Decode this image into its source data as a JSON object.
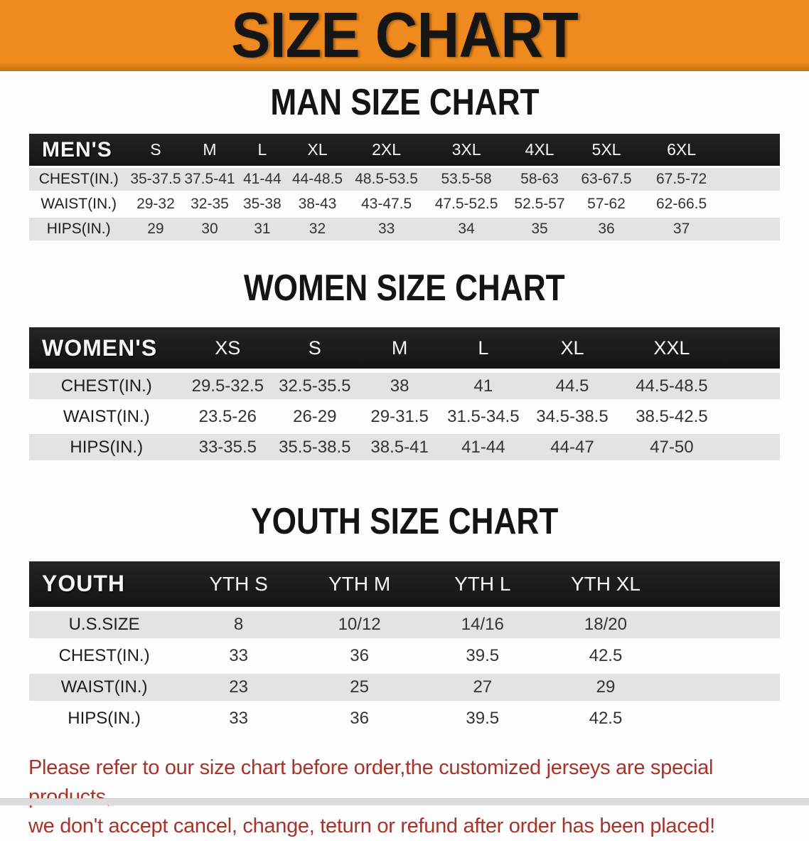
{
  "banner": {
    "title": "SIZE CHART"
  },
  "sections": [
    {
      "heading": "MAN SIZE CHART",
      "table": {
        "header_label": "MEN'S",
        "columns": [
          "S",
          "M",
          "L",
          "XL",
          "2XL",
          "3XL",
          "4XL",
          "5XL",
          "6XL"
        ],
        "rows": [
          {
            "label": "CHEST(IN.)",
            "values": [
              "35-37.5",
              "37.5-41",
              "41-44",
              "44-48.5",
              "48.5-53.5",
              "53.5-58",
              "58-63",
              "63-67.5",
              "67.5-72"
            ]
          },
          {
            "label": "WAIST(IN.)",
            "values": [
              "29-32",
              "32-35",
              "35-38",
              "38-43",
              "43-47.5",
              "47.5-52.5",
              "52.5-57",
              "57-62",
              "62-66.5"
            ]
          },
          {
            "label": "HIPS(IN.)",
            "values": [
              "29",
              "30",
              "31",
              "32",
              "33",
              "34",
              "35",
              "36",
              "37"
            ]
          }
        ]
      }
    },
    {
      "heading": "WOMEN SIZE CHART",
      "table": {
        "header_label": "WOMEN'S",
        "columns": [
          "XS",
          "S",
          "M",
          "L",
          "XL",
          "XXL"
        ],
        "rows": [
          {
            "label": "CHEST(IN.)",
            "values": [
              "29.5-32.5",
              "32.5-35.5",
              "38",
              "41",
              "44.5",
              "44.5-48.5"
            ]
          },
          {
            "label": "WAIST(IN.)",
            "values": [
              "23.5-26",
              "26-29",
              "29-31.5",
              "31.5-34.5",
              "34.5-38.5",
              "38.5-42.5"
            ]
          },
          {
            "label": "HIPS(IN.)",
            "values": [
              "33-35.5",
              "35.5-38.5",
              "38.5-41",
              "41-44",
              "44-47",
              "47-50"
            ]
          }
        ]
      }
    },
    {
      "heading": "YOUTH SIZE CHART",
      "table": {
        "header_label": "YOUTH",
        "columns": [
          "YTH S",
          "YTH M",
          "YTH L",
          "YTH XL"
        ],
        "rows": [
          {
            "label": "U.S.SIZE",
            "values": [
              "8",
              "10/12",
              "14/16",
              "18/20"
            ]
          },
          {
            "label": "CHEST(IN.)",
            "values": [
              "33",
              "36",
              "39.5",
              "42.5"
            ]
          },
          {
            "label": "WAIST(IN.)",
            "values": [
              "23",
              "25",
              "27",
              "29"
            ]
          },
          {
            "label": "HIPS(IN.)",
            "values": [
              "33",
              "36",
              "39.5",
              "42.5"
            ]
          }
        ]
      }
    }
  ],
  "footer_note": {
    "line1": "Please refer to our size chart before order,the customized jerseys are special products,",
    "line2": "we don't accept cancel, change, teturn or refund after order has been placed!"
  },
  "colors": {
    "banner_orange": "#ee8a1e",
    "banner_border": "#c9700f",
    "header_black": "#141414",
    "row_grey": "#e3e3e3",
    "row_white": "#fdfdfd",
    "note_red": "#a8332a",
    "footer_strip_grey": "#dcdcdc"
  }
}
